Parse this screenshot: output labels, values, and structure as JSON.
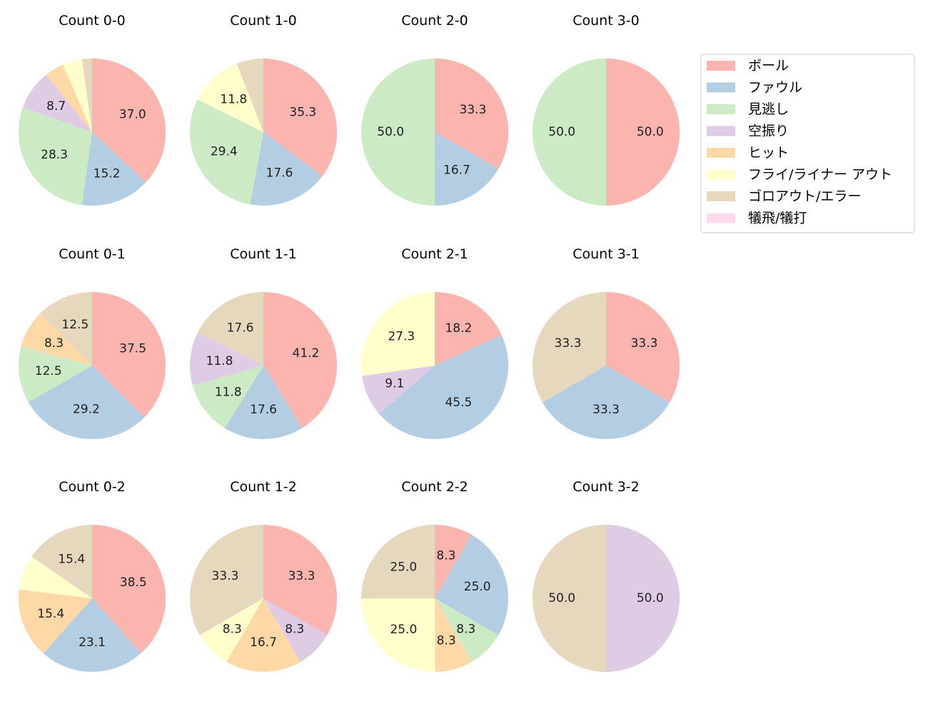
{
  "chart_data": {
    "type": "pie",
    "categories": [
      "ボール",
      "ファウル",
      "見逃し",
      "空振り",
      "ヒット",
      "フライ/ライナー アウト",
      "ゴロアウト/エラー",
      "犠飛/犠打"
    ],
    "colors": [
      "#fbb4ae",
      "#b3cde3",
      "#ccebc5",
      "#decbe4",
      "#fed9a6",
      "#ffffcc",
      "#e5d8bd",
      "#fddaec"
    ],
    "legend_position": "top-right",
    "start_angle": "top, clockwise",
    "charts": [
      {
        "title": "Count 0-0",
        "values": [
          37.0,
          15.2,
          28.3,
          8.7,
          4.3,
          4.3,
          2.2,
          0
        ]
      },
      {
        "title": "Count 1-0",
        "values": [
          35.3,
          17.6,
          29.4,
          0,
          0,
          11.8,
          5.9,
          0
        ]
      },
      {
        "title": "Count 2-0",
        "values": [
          33.3,
          16.7,
          50.0,
          0,
          0,
          0,
          0,
          0
        ]
      },
      {
        "title": "Count 3-0",
        "values": [
          50.0,
          0,
          50.0,
          0,
          0,
          0,
          0,
          0
        ]
      },
      {
        "title": "Count 0-1",
        "values": [
          37.5,
          29.2,
          12.5,
          0,
          8.3,
          0,
          12.5,
          0
        ]
      },
      {
        "title": "Count 1-1",
        "values": [
          41.2,
          17.6,
          11.8,
          11.8,
          0,
          0,
          17.6,
          0
        ]
      },
      {
        "title": "Count 2-1",
        "values": [
          18.2,
          45.5,
          0,
          9.1,
          0,
          27.3,
          0,
          0
        ]
      },
      {
        "title": "Count 3-1",
        "values": [
          33.3,
          33.3,
          0,
          0,
          0,
          0,
          33.3,
          0
        ]
      },
      {
        "title": "Count 0-2",
        "values": [
          38.5,
          23.1,
          0,
          0,
          15.4,
          7.7,
          15.4,
          0
        ]
      },
      {
        "title": "Count 1-2",
        "values": [
          33.3,
          0,
          0,
          8.3,
          16.7,
          8.3,
          33.3,
          0
        ]
      },
      {
        "title": "Count 2-2",
        "values": [
          8.3,
          25.0,
          8.3,
          0,
          8.3,
          25.0,
          25.0,
          0
        ]
      },
      {
        "title": "Count 3-2",
        "values": [
          0,
          0,
          0,
          50.0,
          0,
          0,
          50.0,
          0
        ]
      }
    ]
  }
}
